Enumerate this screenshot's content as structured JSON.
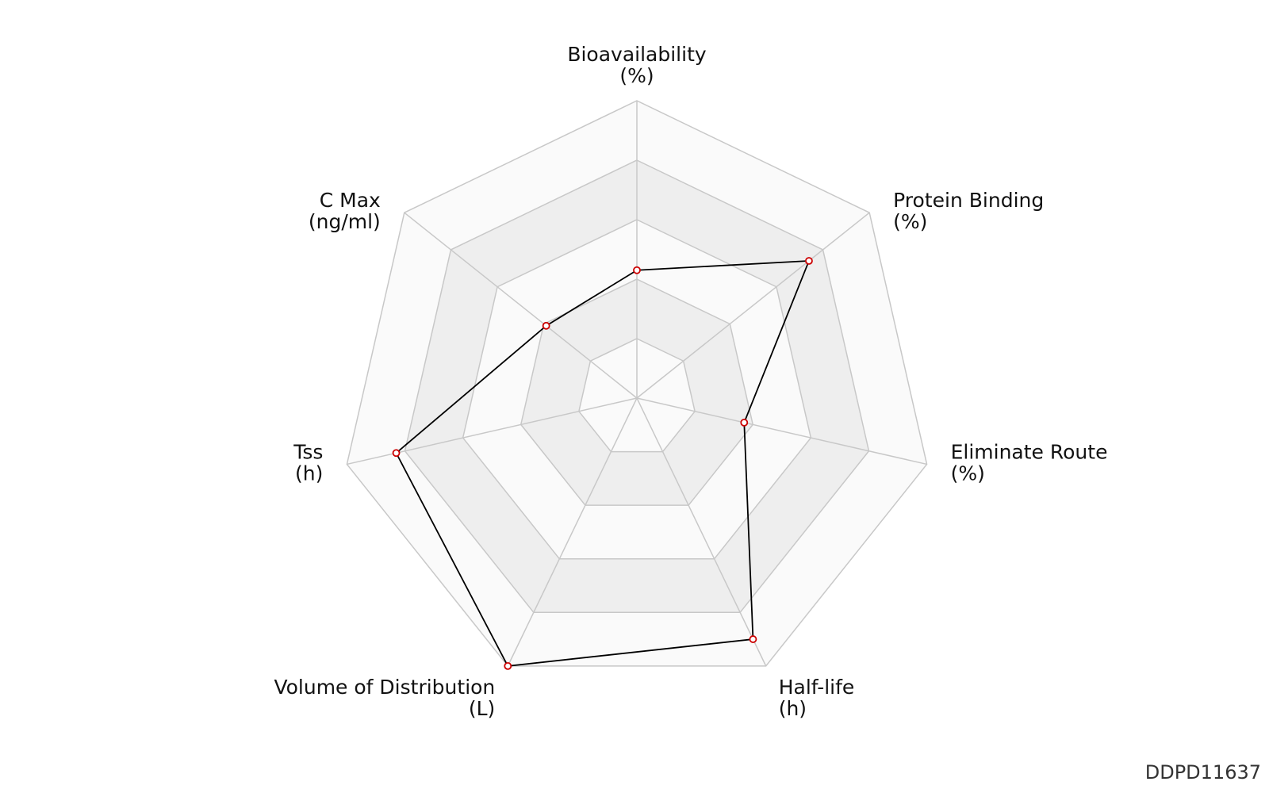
{
  "chart_data": {
    "type": "radar",
    "title": "",
    "axes": [
      {
        "name": "Bioavailability",
        "unit": "(%)"
      },
      {
        "name": "Protein Binding",
        "unit": "(%)"
      },
      {
        "name": "Eliminate Route",
        "unit": "(%)"
      },
      {
        "name": "Half-life",
        "unit": "(h)"
      },
      {
        "name": "Volume of Distribution",
        "unit": "(L)"
      },
      {
        "name": "Tss",
        "unit": "(h)"
      },
      {
        "name": "C Max",
        "unit": "(ng/ml)"
      }
    ],
    "levels": 5,
    "range": [
      0,
      1
    ],
    "series": [
      {
        "values": [
          0.43,
          0.74,
          0.37,
          0.9,
          1.0,
          0.83,
          0.39
        ]
      }
    ],
    "colors": {
      "line": "#000000",
      "marker_stroke": "#cc0000",
      "marker_fill": "#ffffff",
      "grid": "#c8c8c8",
      "band_light": "#fafafa",
      "band_dark": "#eeeeee"
    }
  },
  "watermark": "DDPD11637"
}
